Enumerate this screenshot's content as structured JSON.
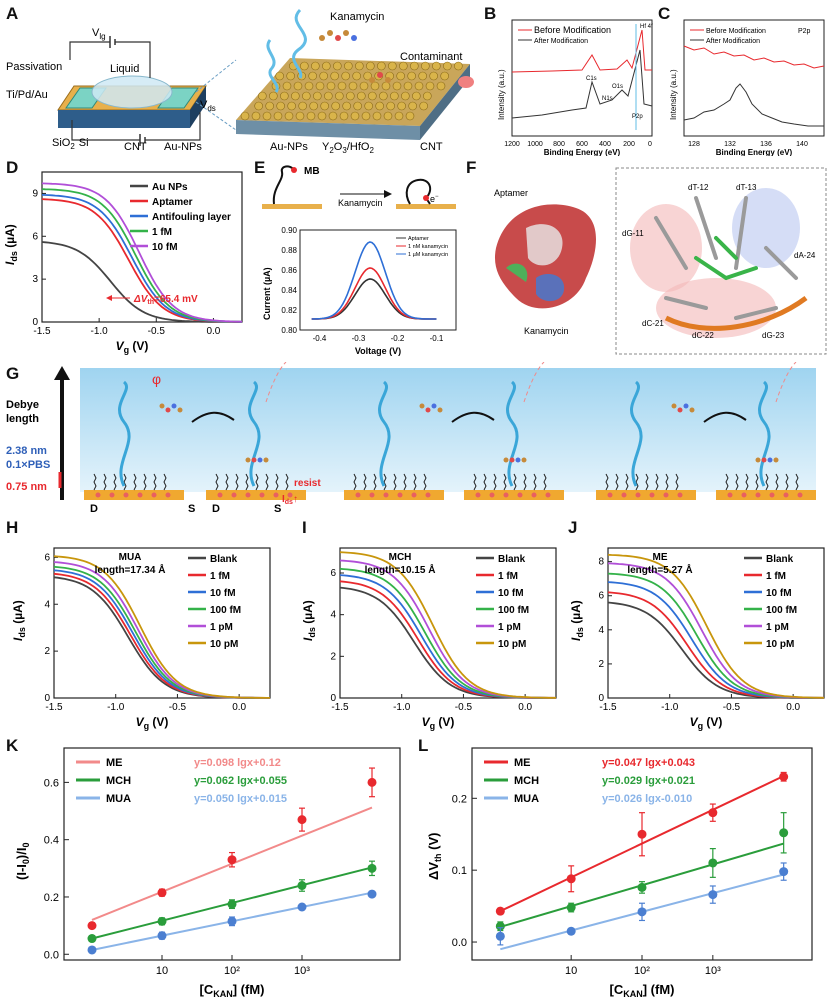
{
  "panel_labels": [
    "A",
    "B",
    "C",
    "D",
    "E",
    "F",
    "G",
    "H",
    "I",
    "J",
    "K",
    "L"
  ],
  "panelA": {
    "labels": {
      "vlg": "V",
      "vlg_sub": "lg",
      "vds": "V",
      "vds_sub": "ds",
      "passivation": "Passivation",
      "liquid": "Liquid",
      "tipdau": "Ti/Pd/Au",
      "sio2": "SiO",
      "sio2_sub": "2",
      "si": "Si",
      "cnt": "CNT",
      "aunps": "Au-NPs",
      "kanamycin": "Kanamycin",
      "contaminant": "Contaminant",
      "aunps2": "Au-NPs",
      "y2o3": "Y",
      "y2o3_a": "2",
      "y2o3_b": "O",
      "y2o3_c": "3",
      "y2o3_d": "/HfO",
      "y2o3_e": "2",
      "cnt2": "CNT"
    }
  },
  "panelB": {
    "legend": [
      "Before Modification",
      "After Modification"
    ],
    "ylabel": "Intensity (a.u.)",
    "xlabel": "Binding Energy (eV)",
    "xticks": [
      "1200",
      "1000",
      "800",
      "600",
      "400",
      "200",
      "0"
    ],
    "peaks": [
      "C1s",
      "N1s",
      "P2p",
      "Hf 4f",
      "O1s"
    ]
  },
  "panelC": {
    "legend": [
      "Before Modification",
      "After Modification"
    ],
    "tag": "P2p",
    "ylabel": "Intensity (a.u.)",
    "xlabel": "Binding Energy (eV)",
    "xticks": [
      "128",
      "132",
      "136",
      "140"
    ]
  },
  "panelE": {
    "mb": "MB",
    "kan": "Kanamycin",
    "eminus": "e",
    "chart": {
      "type": "line",
      "ylabel": "Current (µA)",
      "xlabel": "Voltage (V)",
      "xlim": [
        -0.45,
        -0.05
      ],
      "ylim": [
        0.8,
        0.9
      ],
      "xticks": [
        -0.4,
        -0.3,
        -0.2,
        -0.1
      ],
      "yticks": [
        0.8,
        0.82,
        0.84,
        0.86,
        0.88,
        0.9
      ],
      "series": [
        {
          "name": "Aptamer",
          "peak": 0.851,
          "color": "#333333"
        },
        {
          "name": "1 nM kanamycin",
          "peak": 0.862,
          "color": "#e8292e"
        },
        {
          "name": "1 µM kanamycin",
          "peak": 0.888,
          "color": "#2e6fd6"
        }
      ],
      "center": -0.27,
      "base": 0.811
    }
  },
  "panelF": {
    "labels": [
      "Aptamer",
      "Kanamycin",
      "dT-12",
      "dT-13",
      "dG-11",
      "dA-24",
      "dC-21",
      "dC-22",
      "dG-23"
    ]
  },
  "panelG": {
    "debye": "Debye",
    "length": "length",
    "v238": "2.38 nm",
    "pbs": "0.1×PBS",
    "v075": "0.75 nm",
    "phi": "φ",
    "d": "D",
    "s": "S",
    "resist": "resist",
    "ids": "I",
    "ids_sub": "ds",
    "up": "↑"
  },
  "chart_data": [
    {
      "id": "D",
      "type": "line",
      "ylabel": "I",
      "ylabel_sub": "ds",
      "yunit": " (µA)",
      "xlabel": "V",
      "xlabel_sub": "g",
      "xunit": " (V)",
      "xlim": [
        -1.5,
        0.25
      ],
      "ylim": [
        0,
        10.5
      ],
      "xticks": [
        -1.5,
        -1.0,
        -0.5,
        0.0
      ],
      "yticks": [
        0,
        3,
        6,
        9
      ],
      "annotation": {
        "text": "ΔV",
        "sub": "th",
        "rest": "=65.4 mV"
      },
      "series": [
        {
          "name": "Au NPs",
          "color": "#444444",
          "y0": 5.6,
          "shift": 0.0
        },
        {
          "name": "Aptamer",
          "color": "#e8292e",
          "y0": 8.6,
          "shift": 0.16
        },
        {
          "name": "Antifouling layer",
          "color": "#2e6fd6",
          "y0": 8.9,
          "shift": 0.19
        },
        {
          "name": "1 fM",
          "color": "#34b249",
          "y0": 9.3,
          "shift": 0.22
        },
        {
          "name": "10 fM",
          "color": "#b14fd8",
          "y0": 9.7,
          "shift": 0.25
        }
      ]
    },
    {
      "id": "H",
      "type": "line",
      "title": "MUA",
      "subtitle": "length=17.34 Å",
      "ylabel": "I",
      "ylabel_sub": "ds",
      "yunit": " (µA)",
      "xlabel": "V",
      "xlabel_sub": "g",
      "xunit": " (V)",
      "xlim": [
        -1.5,
        0.25
      ],
      "ylim": [
        0,
        6.4
      ],
      "xticks": [
        -1.5,
        -1.0,
        -0.5,
        0.0
      ],
      "yticks": [
        0.0,
        2.0,
        4.0,
        6.0
      ],
      "series": [
        {
          "name": "Blank",
          "color": "#444444",
          "y0": 5.15,
          "shift": 0.0
        },
        {
          "name": "1 fM",
          "color": "#e8292e",
          "y0": 5.3,
          "shift": 0.02
        },
        {
          "name": "10 fM",
          "color": "#2e6fd6",
          "y0": 5.45,
          "shift": 0.04
        },
        {
          "name": "100 fM",
          "color": "#34b249",
          "y0": 5.6,
          "shift": 0.06
        },
        {
          "name": "1 pM",
          "color": "#b14fd8",
          "y0": 5.8,
          "shift": 0.08
        },
        {
          "name": "10 pM",
          "color": "#c8960c",
          "y0": 6.05,
          "shift": 0.1
        }
      ]
    },
    {
      "id": "I",
      "type": "line",
      "title": "MCH",
      "subtitle": "length=10.15 Å",
      "ylabel": "I",
      "ylabel_sub": "ds",
      "yunit": " (µA)",
      "xlabel": "V",
      "xlabel_sub": "g",
      "xunit": " (V)",
      "xlim": [
        -1.5,
        0.25
      ],
      "ylim": [
        0,
        7.2
      ],
      "xticks": [
        -1.5,
        -1.0,
        -0.5,
        0.0
      ],
      "yticks": [
        0,
        2,
        4,
        6
      ],
      "series": [
        {
          "name": "Blank",
          "color": "#444444",
          "y0": 5.3,
          "shift": 0.0
        },
        {
          "name": "1 fM",
          "color": "#e8292e",
          "y0": 5.6,
          "shift": 0.03
        },
        {
          "name": "10 fM",
          "color": "#2e6fd6",
          "y0": 5.9,
          "shift": 0.06
        },
        {
          "name": "100 fM",
          "color": "#34b249",
          "y0": 6.2,
          "shift": 0.09
        },
        {
          "name": "1 pM",
          "color": "#b14fd8",
          "y0": 6.6,
          "shift": 0.12
        },
        {
          "name": "10 pM",
          "color": "#c8960c",
          "y0": 7.0,
          "shift": 0.15
        }
      ]
    },
    {
      "id": "J",
      "type": "line",
      "title": "ME",
      "subtitle": "length=5.27 Å",
      "ylabel": "I",
      "ylabel_sub": "ds",
      "yunit": " (µA)",
      "xlabel": "V",
      "xlabel_sub": "g",
      "xunit": " (V)",
      "xlim": [
        -1.5,
        0.25
      ],
      "ylim": [
        0,
        8.8
      ],
      "xticks": [
        -1.5,
        -1.0,
        -0.5,
        0.0
      ],
      "yticks": [
        0.0,
        2.0,
        4.0,
        6.0,
        8.0
      ],
      "series": [
        {
          "name": "Blank",
          "color": "#444444",
          "y0": 5.6,
          "shift": 0.0
        },
        {
          "name": "1 fM",
          "color": "#e8292e",
          "y0": 6.2,
          "shift": 0.04
        },
        {
          "name": "10 fM",
          "color": "#2e6fd6",
          "y0": 6.8,
          "shift": 0.08
        },
        {
          "name": "100 fM",
          "color": "#34b249",
          "y0": 7.3,
          "shift": 0.12
        },
        {
          "name": "1 pM",
          "color": "#b14fd8",
          "y0": 7.9,
          "shift": 0.16
        },
        {
          "name": "10 pM",
          "color": "#c8960c",
          "y0": 8.4,
          "shift": 0.2
        }
      ]
    },
    {
      "id": "K",
      "type": "scatter",
      "ylabel": "(I-I",
      "ylabel_sub": "0",
      "ylabel_rest": ")/I",
      "ylabel_sub2": "0",
      "xlabel": "[C",
      "xlabel_sub": "KAN",
      "xunit": "] (fM)",
      "xlog": [
        1,
        10000
      ],
      "ylim": [
        -0.02,
        0.72
      ],
      "xticks": [
        "10",
        "10²",
        "10³"
      ],
      "yticks": [
        0.0,
        0.2,
        0.4,
        0.6
      ],
      "x": [
        1,
        10,
        100,
        1000,
        10000
      ],
      "series": [
        {
          "name": "ME",
          "color": "#e8292e",
          "fit": "#f28a8a",
          "eq": "y=0.098 lgx+0.12",
          "slope": 0.098,
          "icept": 0.12,
          "y": [
            0.1,
            0.215,
            0.33,
            0.47,
            0.6
          ],
          "err": [
            0.01,
            0.012,
            0.025,
            0.04,
            0.05
          ]
        },
        {
          "name": "MCH",
          "color": "#2a9d3b",
          "fit": "#2a9d3b",
          "eq": "y=0.062 lgx+0.055",
          "slope": 0.062,
          "icept": 0.055,
          "y": [
            0.055,
            0.115,
            0.175,
            0.24,
            0.3
          ],
          "err": [
            0.01,
            0.012,
            0.015,
            0.02,
            0.025
          ]
        },
        {
          "name": "MUA",
          "color": "#4b7fd1",
          "fit": "#8ab4e8",
          "eq": "y=0.050 lgx+0.015",
          "slope": 0.05,
          "icept": 0.015,
          "y": [
            0.015,
            0.065,
            0.115,
            0.165,
            0.21
          ],
          "err": [
            0.01,
            0.012,
            0.015,
            0.01,
            0.01
          ]
        }
      ]
    },
    {
      "id": "L",
      "type": "scatter",
      "ylabel": "ΔV",
      "ylabel_sub": "th",
      "yunit": " (V)",
      "xlabel": "[C",
      "xlabel_sub": "KAN",
      "xunit": "] (fM)",
      "xlog": [
        1,
        10000
      ],
      "ylim": [
        -0.025,
        0.27
      ],
      "xticks": [
        "10",
        "10²",
        "10³"
      ],
      "yticks": [
        0.0,
        0.1,
        0.2
      ],
      "x": [
        1,
        10,
        100,
        1000,
        10000
      ],
      "series": [
        {
          "name": "ME",
          "color": "#e8292e",
          "fit": "#e8292e",
          "eq": "y=0.047 lgx+0.043",
          "slope": 0.047,
          "icept": 0.043,
          "y": [
            0.043,
            0.088,
            0.15,
            0.18,
            0.23
          ],
          "err": [
            0.004,
            0.018,
            0.03,
            0.012,
            0.006
          ]
        },
        {
          "name": "MCH",
          "color": "#2a9d3b",
          "fit": "#2a9d3b",
          "eq": "y=0.029 lgx+0.021",
          "slope": 0.029,
          "icept": 0.021,
          "y": [
            0.022,
            0.048,
            0.076,
            0.11,
            0.152
          ],
          "err": [
            0.006,
            0.006,
            0.008,
            0.02,
            0.028
          ]
        },
        {
          "name": "MUA",
          "color": "#4b7fd1",
          "fit": "#8ab4e8",
          "eq": "y=0.026 lgx-0.010",
          "slope": 0.026,
          "icept": -0.01,
          "y": [
            0.008,
            0.015,
            0.042,
            0.066,
            0.098
          ],
          "err": [
            0.012,
            0.004,
            0.012,
            0.012,
            0.012
          ]
        }
      ]
    }
  ]
}
